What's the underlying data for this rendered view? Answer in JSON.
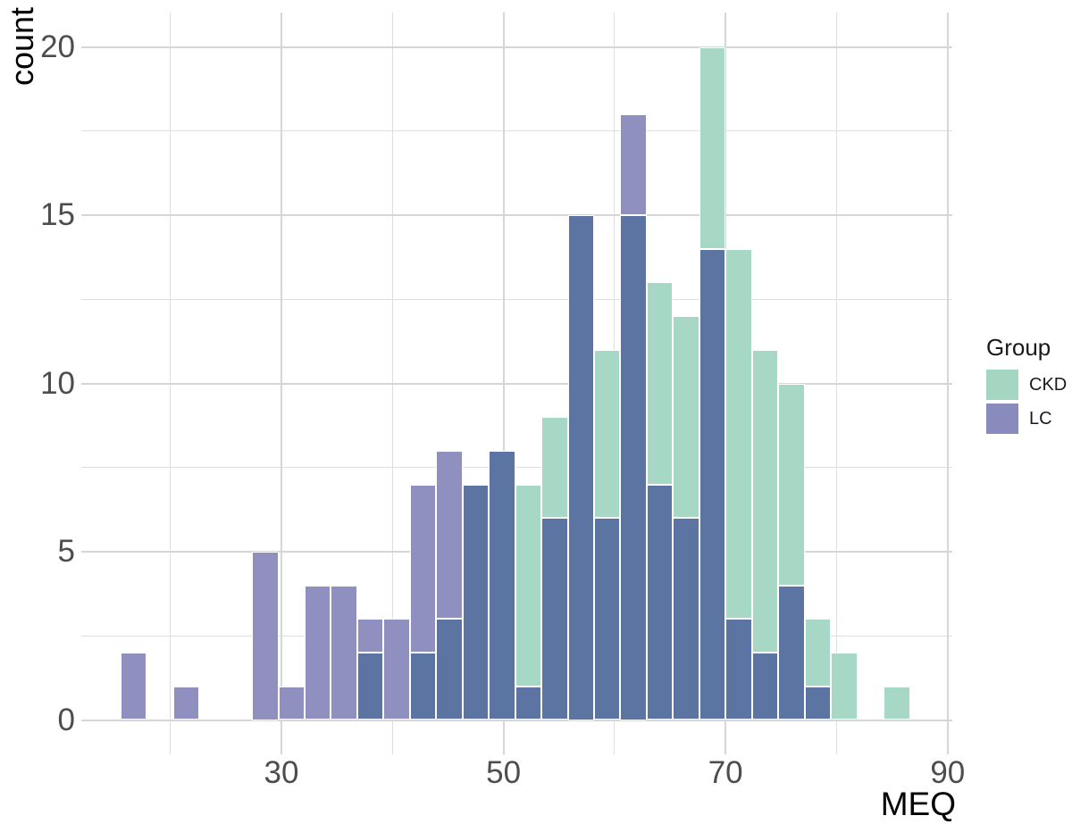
{
  "chart_data": {
    "type": "histogram-overlaid-bar",
    "title": "",
    "xlabel": "MEQ",
    "ylabel": "count",
    "legend_title": "Group",
    "x_major_ticks": [
      30,
      50,
      70,
      90
    ],
    "x_minor_ticks": [
      20,
      40,
      60,
      80
    ],
    "y_major_ticks": [
      0,
      5,
      10,
      15,
      20
    ],
    "y_minor_ticks": [
      2.5,
      7.5,
      12.5,
      17.5
    ],
    "xlim": [
      12,
      90.5
    ],
    "ylim": [
      -1,
      21
    ],
    "grid": "on",
    "legend_position": "right",
    "bin_start": 15.5,
    "bin_width": 2.37,
    "bin_count": 30,
    "series": [
      {
        "name": "CKD",
        "values": [
          0,
          0,
          0,
          0,
          0,
          0,
          0,
          0,
          0,
          2,
          0,
          2,
          3,
          7,
          8,
          7,
          9,
          15,
          11,
          15,
          13,
          12,
          20,
          14,
          11,
          10,
          3,
          2,
          0,
          1
        ]
      },
      {
        "name": "LC",
        "values": [
          2,
          0,
          1,
          0,
          0,
          5,
          1,
          4,
          4,
          3,
          3,
          7,
          8,
          7,
          8,
          1,
          6,
          15,
          6,
          18,
          7,
          6,
          14,
          3,
          2,
          4,
          1,
          0,
          0,
          0
        ]
      }
    ]
  },
  "colors": {
    "ckd_fill": "#a7d8c5",
    "lc_fill": "#8f90c0",
    "overlap_fill": "#5b74a1",
    "gridline_major": "#d6d6d6",
    "gridline_minor": "#dedede",
    "tick_text": "#4d4d4d",
    "title_text": "#000000",
    "legend_ckd_swatch": "#a5d6c2",
    "legend_lc_swatch": "#8a8bbd"
  },
  "axes": {
    "y_title": "count",
    "x_title": "MEQ",
    "y_tick_labels": [
      "0",
      "5",
      "10",
      "15",
      "20"
    ],
    "x_tick_labels": [
      "30",
      "50",
      "70",
      "90"
    ]
  },
  "legend": {
    "title": "Group",
    "items": [
      {
        "label": "CKD",
        "color_key": "ckd"
      },
      {
        "label": "LC",
        "color_key": "lc"
      }
    ]
  }
}
